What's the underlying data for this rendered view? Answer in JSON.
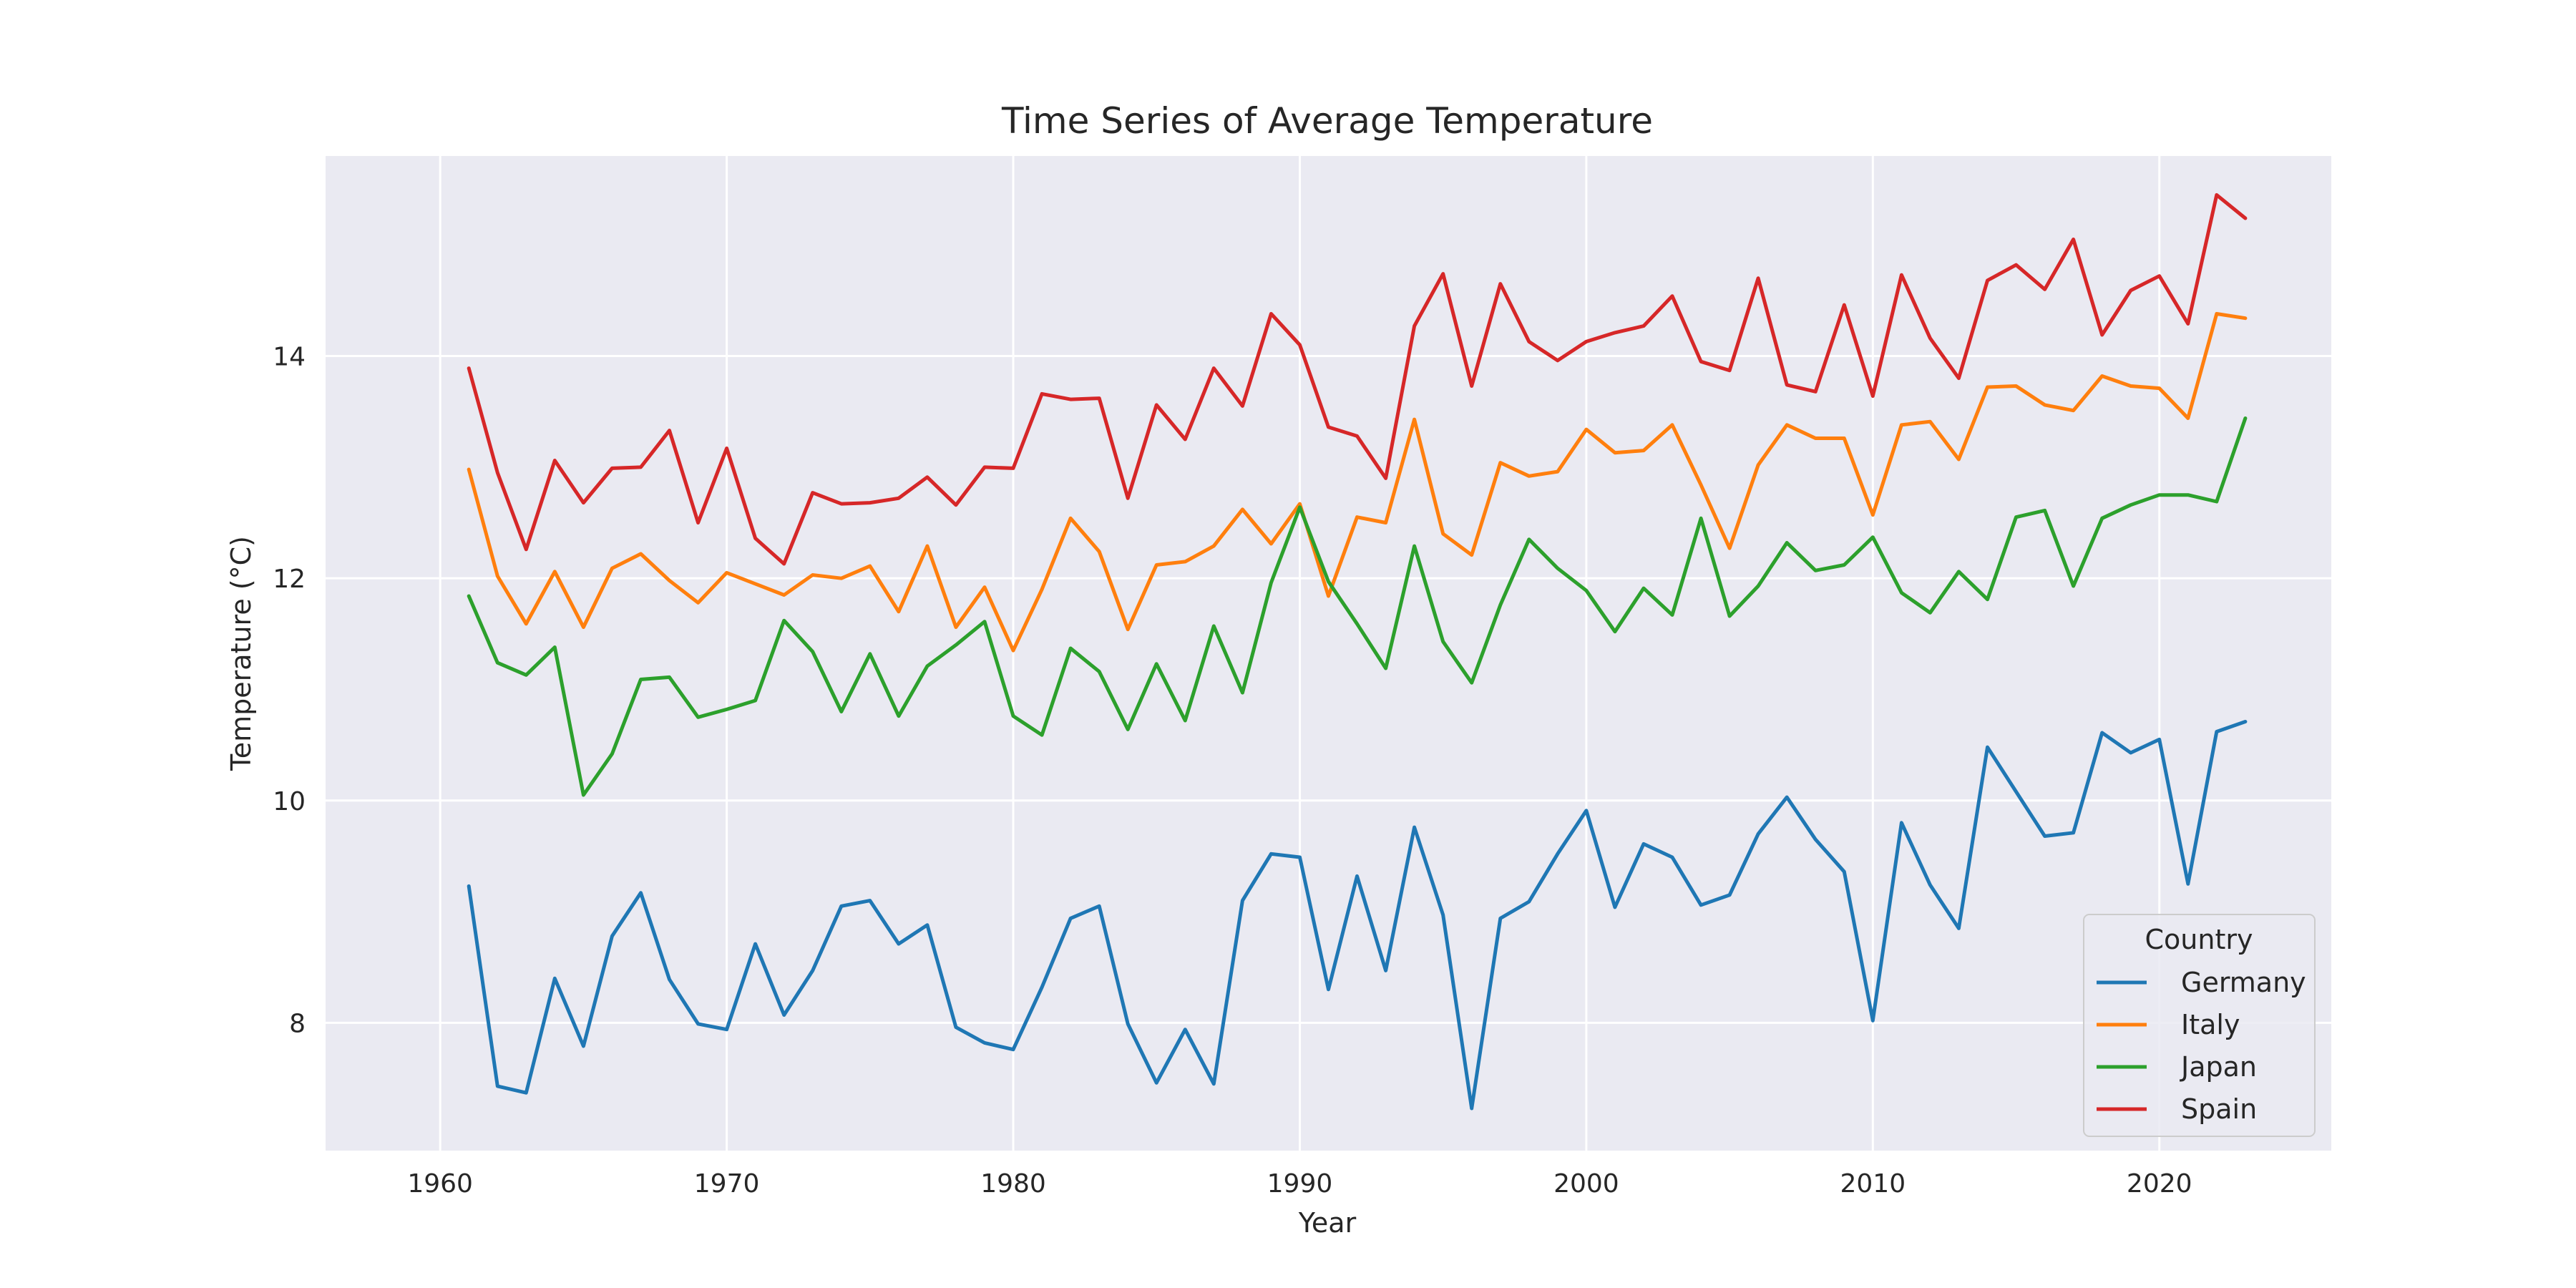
{
  "chart_data": {
    "type": "line",
    "title": "Time Series of Average Temperature",
    "xlabel": "Year",
    "ylabel": "Temperature (°C)",
    "xlim": [
      1956,
      2026
    ],
    "ylim": [
      6.85,
      15.8
    ],
    "xticks": [
      1960,
      1970,
      1980,
      1990,
      2000,
      2010,
      2020
    ],
    "yticks": [
      8,
      10,
      12,
      14
    ],
    "grid": true,
    "legend": {
      "title": "Country",
      "placement": "lower-right"
    },
    "x": [
      1961,
      1962,
      1963,
      1964,
      1965,
      1966,
      1967,
      1968,
      1969,
      1970,
      1971,
      1972,
      1973,
      1974,
      1975,
      1976,
      1977,
      1978,
      1979,
      1980,
      1981,
      1982,
      1983,
      1984,
      1985,
      1986,
      1987,
      1988,
      1989,
      1990,
      1991,
      1992,
      1993,
      1994,
      1995,
      1996,
      1997,
      1998,
      1999,
      2000,
      2001,
      2002,
      2003,
      2004,
      2005,
      2006,
      2007,
      2008,
      2009,
      2010,
      2011,
      2012,
      2013,
      2014,
      2015,
      2016,
      2017,
      2018,
      2019,
      2020,
      2021,
      2022,
      2023
    ],
    "series": [
      {
        "name": "Germany",
        "color": "#1f77b4",
        "values": [
          9.23,
          7.43,
          7.37,
          8.4,
          7.79,
          8.78,
          9.17,
          8.39,
          7.99,
          7.94,
          8.71,
          8.07,
          8.47,
          9.05,
          9.1,
          8.71,
          8.88,
          7.96,
          7.82,
          7.76,
          8.32,
          8.94,
          9.05,
          7.99,
          7.46,
          7.94,
          7.45,
          9.1,
          9.52,
          9.49,
          8.3,
          9.32,
          8.47,
          9.76,
          8.97,
          7.23,
          8.94,
          9.09,
          9.52,
          9.91,
          9.04,
          9.61,
          9.49,
          9.06,
          9.15,
          9.7,
          10.03,
          9.65,
          9.36,
          8.02,
          9.8,
          9.24,
          8.85,
          10.48,
          10.08,
          9.68,
          9.71,
          10.61,
          10.43,
          10.55,
          9.25,
          10.62,
          10.71
        ]
      },
      {
        "name": "Italy",
        "color": "#ff7f0e",
        "values": [
          12.98,
          12.02,
          11.59,
          12.06,
          11.56,
          12.09,
          12.22,
          11.98,
          11.78,
          12.05,
          11.95,
          11.85,
          12.03,
          12.0,
          12.11,
          11.7,
          12.29,
          11.56,
          11.92,
          11.35,
          11.9,
          12.54,
          12.24,
          11.54,
          12.12,
          12.15,
          12.29,
          12.62,
          12.31,
          12.67,
          11.84,
          12.55,
          12.5,
          13.43,
          12.4,
          12.21,
          13.04,
          12.92,
          12.96,
          13.34,
          13.13,
          13.15,
          13.38,
          12.84,
          12.27,
          13.02,
          13.38,
          13.26,
          13.26,
          12.57,
          13.38,
          13.41,
          13.07,
          13.72,
          13.73,
          13.56,
          13.51,
          13.82,
          13.73,
          13.71,
          13.44,
          14.38,
          14.34
        ]
      },
      {
        "name": "Japan",
        "color": "#2ca02c",
        "values": [
          11.84,
          11.24,
          11.13,
          11.38,
          10.05,
          10.42,
          11.09,
          11.11,
          10.75,
          10.82,
          10.9,
          11.62,
          11.34,
          10.8,
          11.32,
          10.76,
          11.21,
          11.4,
          11.61,
          10.76,
          10.59,
          11.37,
          11.16,
          10.64,
          11.23,
          10.72,
          11.57,
          10.97,
          11.96,
          12.64,
          11.97,
          11.59,
          11.19,
          12.29,
          11.43,
          11.06,
          11.76,
          12.35,
          12.09,
          11.89,
          11.52,
          11.91,
          11.67,
          12.54,
          11.66,
          11.93,
          12.32,
          12.07,
          12.12,
          12.37,
          11.87,
          11.69,
          12.06,
          11.81,
          12.55,
          12.61,
          11.93,
          12.54,
          12.66,
          12.75,
          12.75,
          12.69,
          13.44
        ]
      },
      {
        "name": "Spain",
        "color": "#d62728",
        "values": [
          13.89,
          12.95,
          12.26,
          13.06,
          12.68,
          12.99,
          13.0,
          13.33,
          12.5,
          13.17,
          12.36,
          12.13,
          12.77,
          12.67,
          12.68,
          12.72,
          12.91,
          12.66,
          13.0,
          12.99,
          13.66,
          13.61,
          13.62,
          12.72,
          13.56,
          13.25,
          13.89,
          13.55,
          14.38,
          14.1,
          13.36,
          13.28,
          12.9,
          14.27,
          14.74,
          13.73,
          14.65,
          14.13,
          13.96,
          14.13,
          14.21,
          14.27,
          14.54,
          13.95,
          13.87,
          14.7,
          13.74,
          13.68,
          14.46,
          13.64,
          14.73,
          14.16,
          13.8,
          14.68,
          14.82,
          14.6,
          15.05,
          14.19,
          14.59,
          14.72,
          14.29,
          15.45,
          15.24
        ]
      }
    ]
  }
}
